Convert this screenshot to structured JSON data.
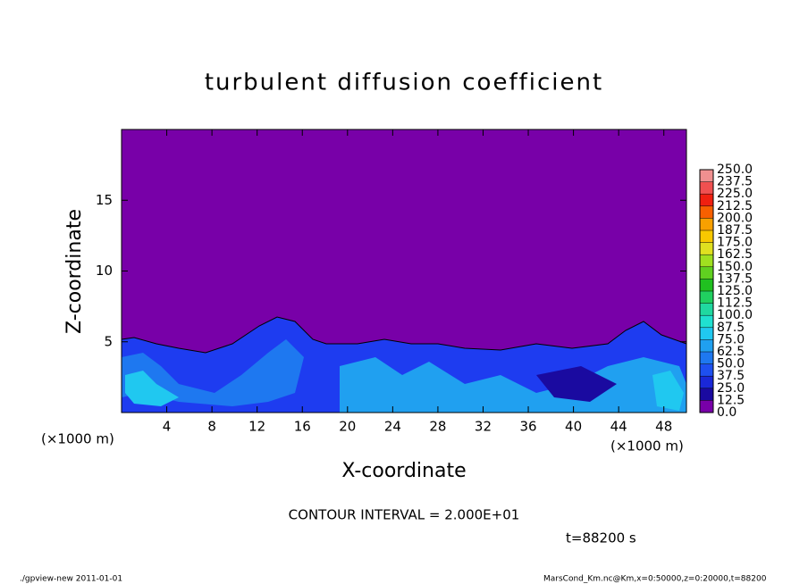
{
  "chart_data": {
    "type": "contour",
    "title": "turbulent diffusion coefficient",
    "x_label": "X-coordinate",
    "y_label": "Z-coordinate",
    "x_unit": "(×1000 m)",
    "xlim": [
      0,
      50
    ],
    "xticks": [
      4,
      8,
      12,
      16,
      20,
      24,
      28,
      32,
      36,
      40,
      44,
      48
    ],
    "ylim": [
      0,
      20
    ],
    "yticks": [
      5,
      10,
      15
    ],
    "colorbar": {
      "levels": [
        {
          "value": 0,
          "label": "0.0"
        },
        12.5,
        {
          "value": 25,
          "label": "25.0"
        },
        37.5,
        {
          "value": 50,
          "label": "50.0"
        },
        62.5,
        {
          "value": 75,
          "label": "75.0"
        },
        87.5,
        {
          "value": 100,
          "label": "100.0"
        },
        112.5,
        {
          "value": 125,
          "label": "125.0"
        },
        137.5,
        {
          "value": 150,
          "label": "150.0"
        },
        162.5,
        {
          "value": 175,
          "label": "175.0"
        },
        187.5,
        {
          "value": 200,
          "label": "200.0"
        },
        212.5,
        {
          "value": 225,
          "label": "225.0"
        },
        237.5,
        {
          "value": 250,
          "label": "250.0"
        }
      ],
      "colors": [
        "#7800a8",
        "#1a0aa0",
        "#1a28d8",
        "#1e50f0",
        "#1e78f0",
        "#20a0f0",
        "#20c8f0",
        "#20e0d0",
        "#20d8a0",
        "#20d060",
        "#20c020",
        "#60d020",
        "#a0e020",
        "#e0e020",
        "#f8c800",
        "#f8a000",
        "#f86000",
        "#f02010",
        "#f05050",
        "#f09090"
      ]
    },
    "contour_interval": "CONTOUR INTERVAL = 2.000E+01",
    "time_label": "t=88200 s",
    "footer_left": "./gpview-new  2011-01-01",
    "footer_right": "MarsCond_Km.nc@Km,x=0:50000,z=0:20000,t=88200"
  }
}
